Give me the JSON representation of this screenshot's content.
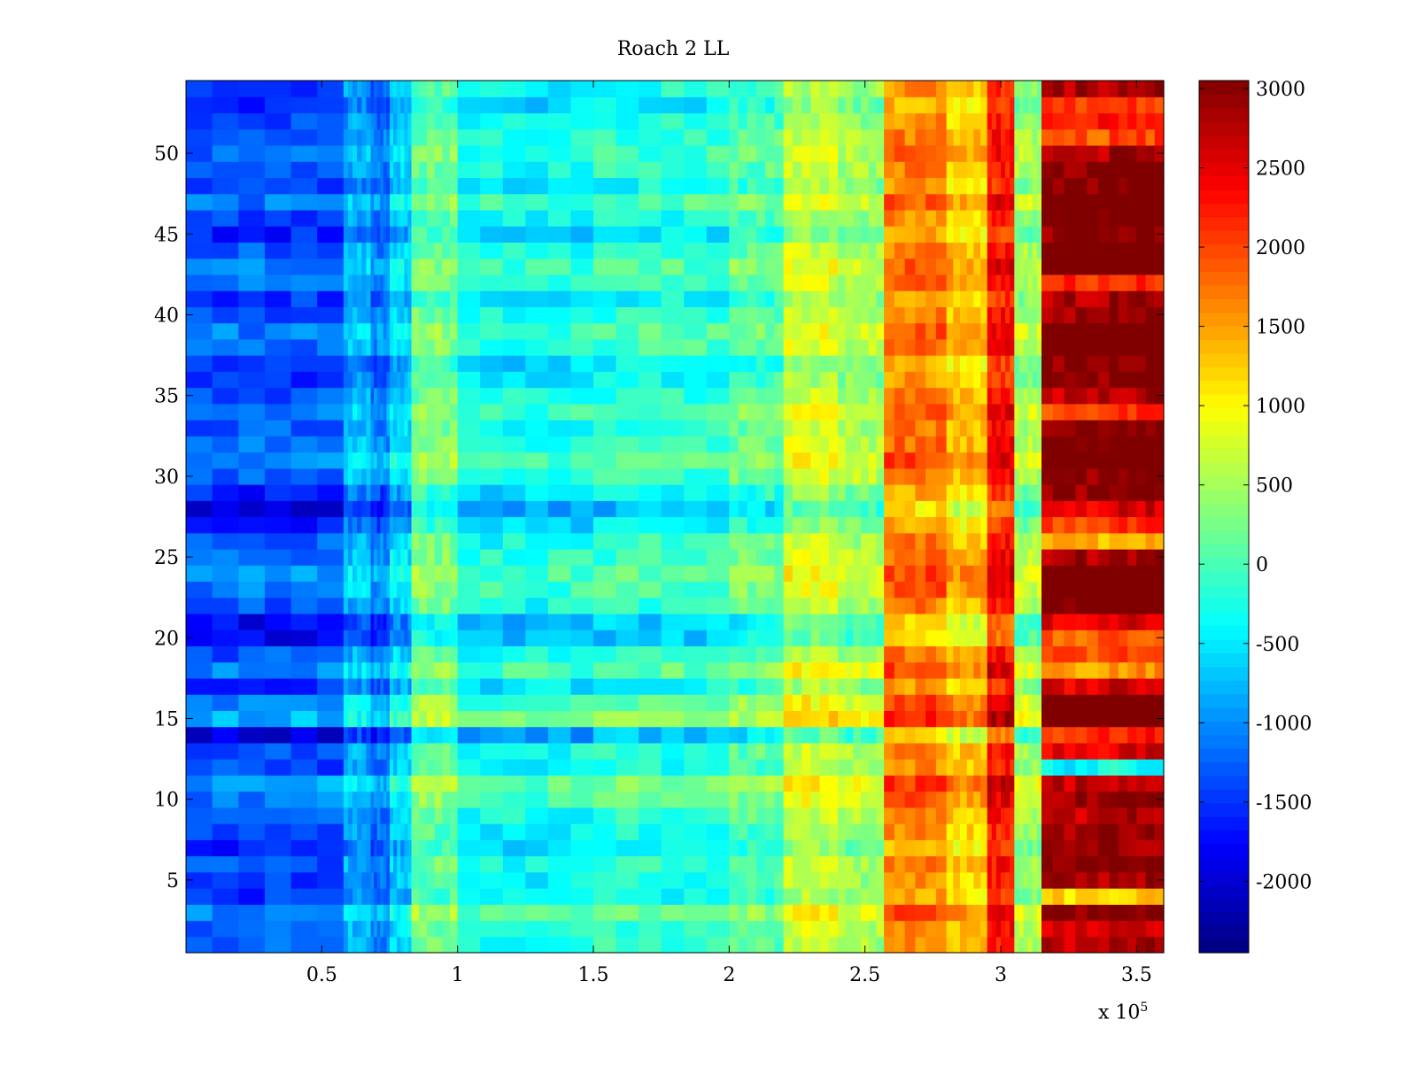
{
  "chart_data": {
    "type": "heatmap",
    "title": "Roach 2 LL",
    "xlabel": "",
    "ylabel": "",
    "x_multiplier_prefix": "x 10",
    "x_multiplier_exponent": "5",
    "xlim": [
      0,
      3.6
    ],
    "ylim": [
      0.5,
      54.5
    ],
    "x_ticks": [
      0.5,
      1,
      1.5,
      2,
      2.5,
      3,
      3.5
    ],
    "x_tick_labels": [
      "0.5",
      "1",
      "1.5",
      "2",
      "2.5",
      "3",
      "3.5"
    ],
    "y_ticks": [
      5,
      10,
      15,
      20,
      25,
      30,
      35,
      40,
      45,
      50
    ],
    "y_tick_labels": [
      "5",
      "10",
      "15",
      "20",
      "25",
      "30",
      "35",
      "40",
      "45",
      "50"
    ],
    "colorbar": {
      "colormap": "jet",
      "clim": [
        -2450,
        3050
      ],
      "ticks": [
        -2000,
        -1500,
        -1000,
        -500,
        0,
        500,
        1000,
        1500,
        2000,
        2500,
        3000
      ],
      "tick_labels": [
        "-2000",
        "-1500",
        "-1000",
        "-500",
        "0",
        "500",
        "1000",
        "1500",
        "2000",
        "2500",
        "3000"
      ]
    },
    "rows": 54,
    "column_segments_x": [
      0,
      0.58,
      0.68,
      0.75,
      0.83,
      1.0,
      1.5,
      2.0,
      2.2,
      2.4,
      2.57,
      2.8,
      2.95,
      3.05,
      3.15,
      3.4,
      3.6
    ],
    "base_profile": [
      -1300,
      -800,
      -1100,
      -600,
      200,
      -300,
      -150,
      100,
      700,
      500,
      1700,
      1300,
      2300,
      500,
      2700,
      2800
    ],
    "row_offsets": [
      0,
      50,
      300,
      -200,
      -100,
      0,
      -300,
      -100,
      0,
      200,
      400,
      -100,
      0,
      -600,
      500,
      300,
      -200,
      300,
      0,
      -500,
      -500,
      0,
      200,
      300,
      100,
      0,
      -300,
      -600,
      -300,
      100,
      300,
      100,
      0,
      200,
      0,
      -200,
      -300,
      100,
      200,
      0,
      -200,
      100,
      200,
      0,
      -300,
      -100,
      200,
      -200,
      0,
      100,
      0,
      -100,
      -300,
      -100
    ],
    "row_boosts_right": [
      0,
      -200,
      0,
      -1300,
      200,
      300,
      400,
      300,
      0,
      0,
      -400,
      -3000,
      -200,
      0,
      400,
      300,
      0,
      -1500,
      -800,
      -400,
      300,
      400,
      400,
      300,
      0,
      -1300,
      -400,
      400,
      500,
      200,
      300,
      400,
      300,
      -900,
      0,
      500,
      600,
      600,
      600,
      200,
      300,
      -700,
      500,
      600,
      600,
      500,
      400,
      500,
      300,
      0,
      -800,
      -400,
      -400,
      200
    ]
  }
}
